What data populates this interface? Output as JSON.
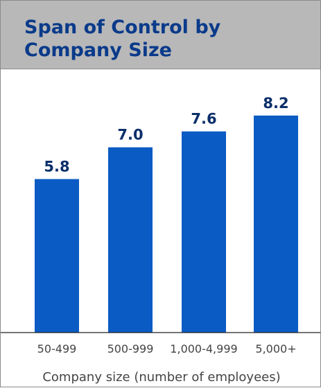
{
  "colors": {
    "header_bg": "#b8b8b8",
    "title": "#0a3a8a",
    "bar": "#0a5bc4",
    "value_label": "#0b2f6a",
    "tick_label": "#444444",
    "baseline": "#222222"
  },
  "chart_data": {
    "type": "bar",
    "title": "Span of Control by Company Size",
    "xlabel": "Company size (number of employees)",
    "ylabel": "",
    "categories": [
      "50-499",
      "500-999",
      "1,000-4,999",
      "5,000+"
    ],
    "values": [
      5.8,
      7.0,
      7.6,
      8.2
    ],
    "value_labels": [
      "5.8",
      "7.0",
      "7.6",
      "8.2"
    ],
    "ylim": [
      0,
      10
    ],
    "grid": false,
    "legend": "none"
  }
}
